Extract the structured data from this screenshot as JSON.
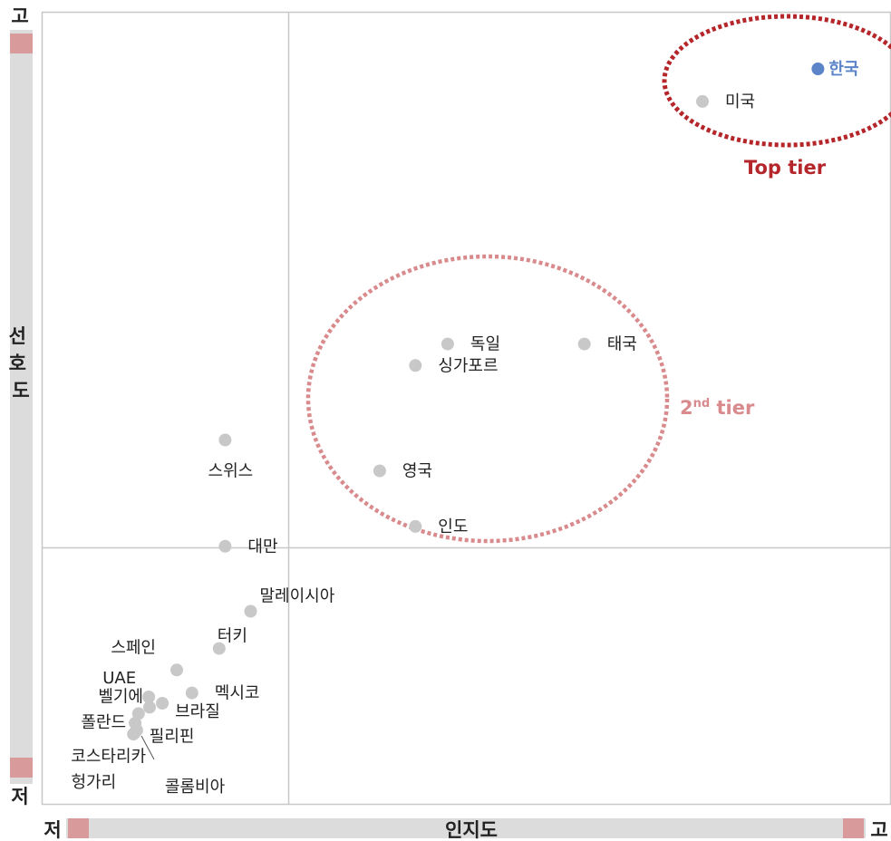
{
  "chart_data": {
    "type": "scatter",
    "xlabel": "인지도",
    "ylabel": "선호도",
    "x_low_label": "저",
    "x_high_label": "고",
    "y_low_label": "저",
    "y_high_label": "고",
    "points": [
      {
        "label": "한국",
        "x": 91.4,
        "y": 92.8,
        "highlight": true
      },
      {
        "label": "미국",
        "x": 77.8,
        "y": 88.7
      },
      {
        "label": "태국",
        "x": 63.9,
        "y": 58.1
      },
      {
        "label": "독일",
        "x": 47.8,
        "y": 58.1
      },
      {
        "label": "싱가포르",
        "x": 44.0,
        "y": 55.4
      },
      {
        "label": "스위스",
        "x": 21.6,
        "y": 46.0
      },
      {
        "label": "영국",
        "x": 39.8,
        "y": 42.1
      },
      {
        "label": "인도",
        "x": 44.0,
        "y": 35.1
      },
      {
        "label": "대만",
        "x": 21.6,
        "y": 32.6
      },
      {
        "label": "말레이시아",
        "x": 24.6,
        "y": 24.4
      },
      {
        "label": "터키",
        "x": 20.9,
        "y": 19.7
      },
      {
        "label": "스페인",
        "x": 15.9,
        "y": 17.0
      },
      {
        "label": "멕시코",
        "x": 17.7,
        "y": 14.1
      },
      {
        "label": "UAE",
        "x": 12.6,
        "y": 13.6
      },
      {
        "label": "브라질",
        "x": 14.2,
        "y": 12.8
      },
      {
        "label": "벨기에",
        "x": 12.7,
        "y": 12.3
      },
      {
        "label": "필리핀",
        "x": 11.4,
        "y": 11.5
      },
      {
        "label": "폴란드",
        "x": 11.0,
        "y": 10.3
      },
      {
        "label": "콜롬비아",
        "x": 11.2,
        "y": 9.4
      },
      {
        "label": "코스타리카",
        "x": 10.9,
        "y": 9.0
      },
      {
        "label": "헝가리",
        "x": 10.8,
        "y": 8.9
      }
    ],
    "tiers": [
      {
        "label": "Top tier",
        "color": "#b5262b"
      },
      {
        "label": "2nd tier",
        "color": "#d98a8c"
      }
    ],
    "colors": {
      "point": "#c8c8c8",
      "highlight": "#5b85c8",
      "axis_bar": "#dcdcdc",
      "axis_marker": "#d99a9b",
      "text": "#222222"
    }
  }
}
